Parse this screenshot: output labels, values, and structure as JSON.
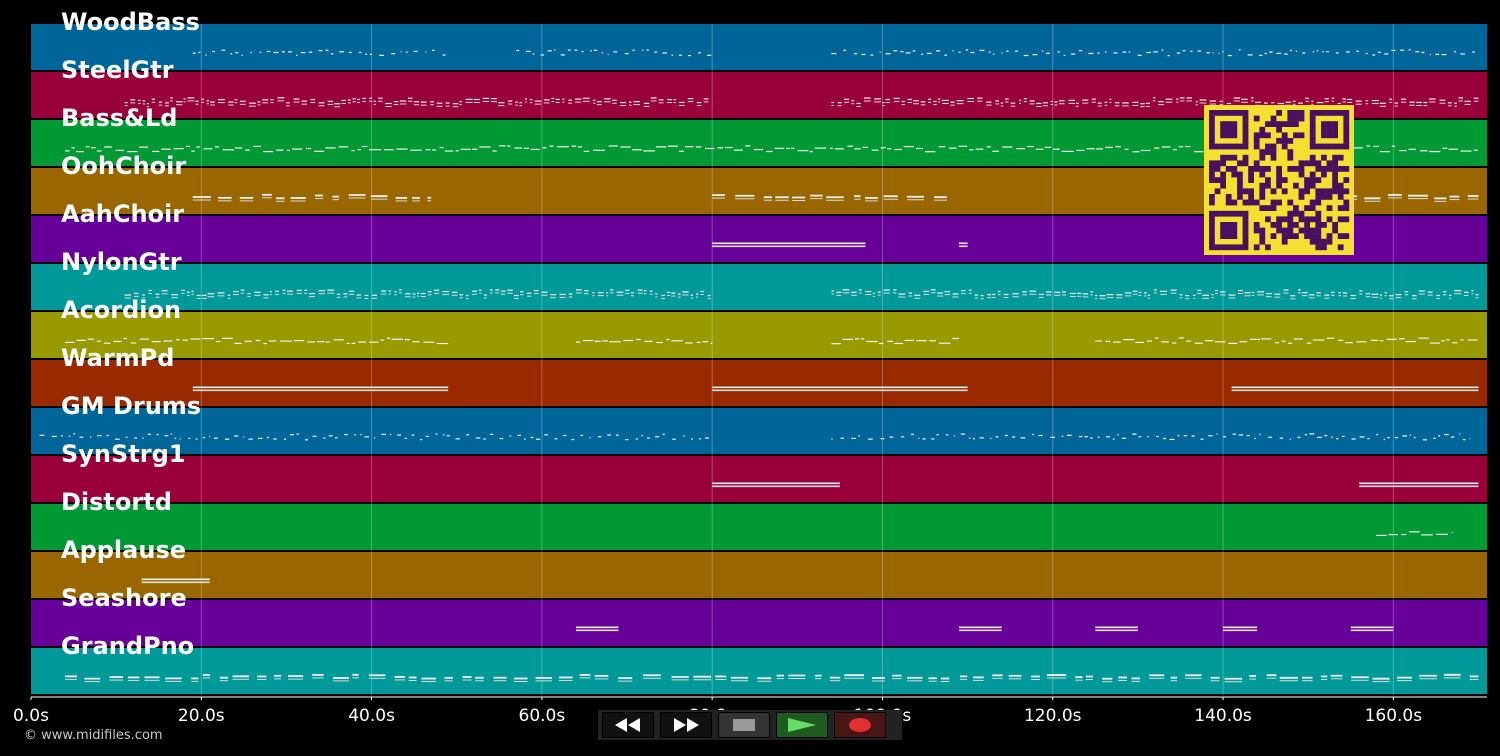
{
  "chart_data": {
    "type": "piano-roll",
    "x_unit": "s",
    "xlim": [
      0,
      171
    ],
    "ticks": [
      0,
      20,
      40,
      60,
      80,
      100,
      120,
      140,
      160
    ],
    "tick_labels": [
      "0.0s",
      "20.0s",
      "40.0s",
      "60.0s",
      "80.0s",
      "100.0s",
      "120.0s",
      "140.0s",
      "160.0s"
    ],
    "grid": true,
    "tracks": [
      {
        "name": "WoodBass",
        "color": "#006699",
        "segments": [
          [
            19,
            49
          ],
          [
            57,
            80
          ],
          [
            94,
            170
          ]
        ],
        "style": "sparse"
      },
      {
        "name": "SteelGtr",
        "color": "#99003a",
        "segments": [
          [
            11,
            80
          ],
          [
            94,
            170
          ]
        ],
        "style": "dense"
      },
      {
        "name": "Bass&Ld",
        "color": "#009933",
        "segments": [
          [
            4,
            170
          ]
        ],
        "style": "melody"
      },
      {
        "name": "OohChoir",
        "color": "#996600",
        "segments": [
          [
            19,
            47
          ],
          [
            80,
            108
          ],
          [
            155,
            170
          ]
        ],
        "style": "chords"
      },
      {
        "name": "AahChoir",
        "color": "#660099",
        "segments": [
          [
            80,
            98
          ],
          [
            109,
            110
          ]
        ],
        "style": "pad"
      },
      {
        "name": "NylonGtr",
        "color": "#009999",
        "segments": [
          [
            11,
            80
          ],
          [
            94,
            170
          ]
        ],
        "style": "dense"
      },
      {
        "name": "Acordion",
        "color": "#999900",
        "segments": [
          [
            4,
            49
          ],
          [
            64,
            80
          ],
          [
            94,
            109
          ],
          [
            125,
            170
          ]
        ],
        "style": "melody"
      },
      {
        "name": "WarmPd",
        "color": "#992a00",
        "segments": [
          [
            19,
            49
          ],
          [
            80,
            110
          ],
          [
            141,
            170
          ]
        ],
        "style": "pad"
      },
      {
        "name": "GM Drums",
        "color": "#006699",
        "segments": [
          [
            1,
            80
          ],
          [
            94,
            169
          ]
        ],
        "style": "sparse"
      },
      {
        "name": "SynStrg1",
        "color": "#99003a",
        "segments": [
          [
            80,
            95
          ],
          [
            156,
            170
          ]
        ],
        "style": "pad"
      },
      {
        "name": "Distortd",
        "color": "#009933",
        "segments": [
          [
            158,
            167
          ]
        ],
        "style": "melody"
      },
      {
        "name": "Applause",
        "color": "#996600",
        "segments": [
          [
            13,
            21
          ]
        ],
        "style": "pad"
      },
      {
        "name": "Seashore",
        "color": "#660099",
        "segments": [
          [
            64,
            69
          ],
          [
            109,
            114
          ],
          [
            125,
            130
          ],
          [
            140,
            144
          ],
          [
            155,
            160
          ]
        ],
        "style": "pad"
      },
      {
        "name": "GrandPno",
        "color": "#009999",
        "segments": [
          [
            4,
            170
          ]
        ],
        "style": "chords"
      }
    ]
  },
  "copyright": "© www.midifiles.com",
  "qr_code": {
    "color": "#f4e031",
    "module_color": "#4a1060"
  },
  "transport": [
    {
      "name": "rewind",
      "icon": "rewind-icon",
      "color": "#111111"
    },
    {
      "name": "fast-forward",
      "icon": "fast-forward-icon",
      "color": "#111111"
    },
    {
      "name": "stop",
      "icon": "stop-icon",
      "color": "#333333"
    },
    {
      "name": "play",
      "icon": "play-icon",
      "color": "#1f5a1f"
    },
    {
      "name": "record",
      "icon": "record-icon",
      "color": "#4a1515"
    }
  ]
}
